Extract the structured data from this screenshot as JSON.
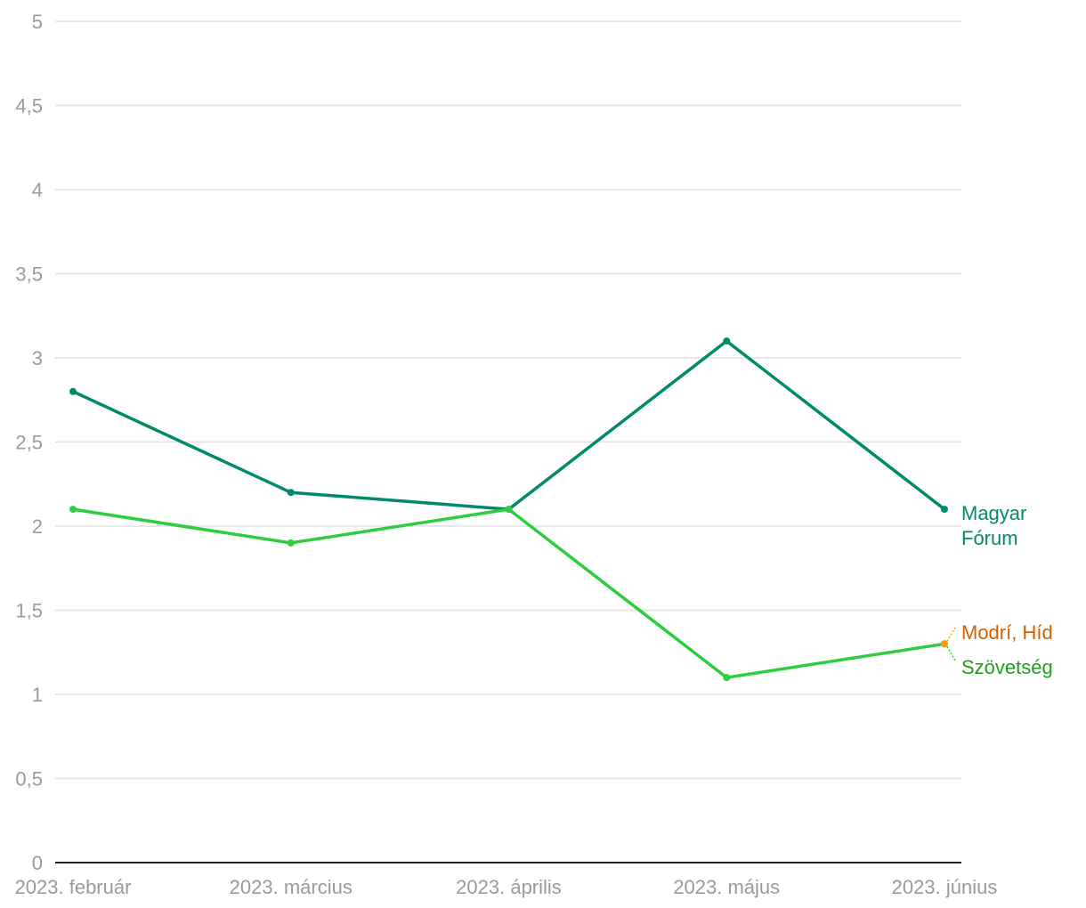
{
  "chart_data": {
    "type": "line",
    "title": "",
    "xlabel": "",
    "ylabel": "",
    "categories": [
      "2023. február",
      "2023. március",
      "2023. április",
      "2023. május",
      "2023. június"
    ],
    "ylim": [
      0,
      5
    ],
    "y_ticks": [
      0,
      0.5,
      1,
      1.5,
      2,
      2.5,
      3,
      3.5,
      4,
      4.5,
      5
    ],
    "y_tick_labels": [
      "0",
      "0,5",
      "1",
      "1,5",
      "2",
      "2,5",
      "3",
      "3,5",
      "4",
      "4,5",
      "5"
    ],
    "grid": true,
    "legend": "direct labels at line ends (right)",
    "series": [
      {
        "name": "Magyar Fórum",
        "label_lines": [
          "Magyar",
          "Fórum"
        ],
        "color": "#00896b",
        "values": [
          2.8,
          2.2,
          2.1,
          3.1,
          2.1
        ]
      },
      {
        "name": "Modrí, Híd",
        "label_lines": [
          "Modrí, Híd"
        ],
        "color": "#d35f00",
        "point_color": "#f39a1c",
        "values": [
          null,
          null,
          null,
          null,
          1.3
        ]
      },
      {
        "name": "Szövetség",
        "label_lines": [
          "Szövetség"
        ],
        "color": "#2ecc40",
        "label_color": "#1f9e1f",
        "values": [
          2.1,
          1.9,
          2.1,
          1.1,
          1.3
        ]
      }
    ]
  }
}
